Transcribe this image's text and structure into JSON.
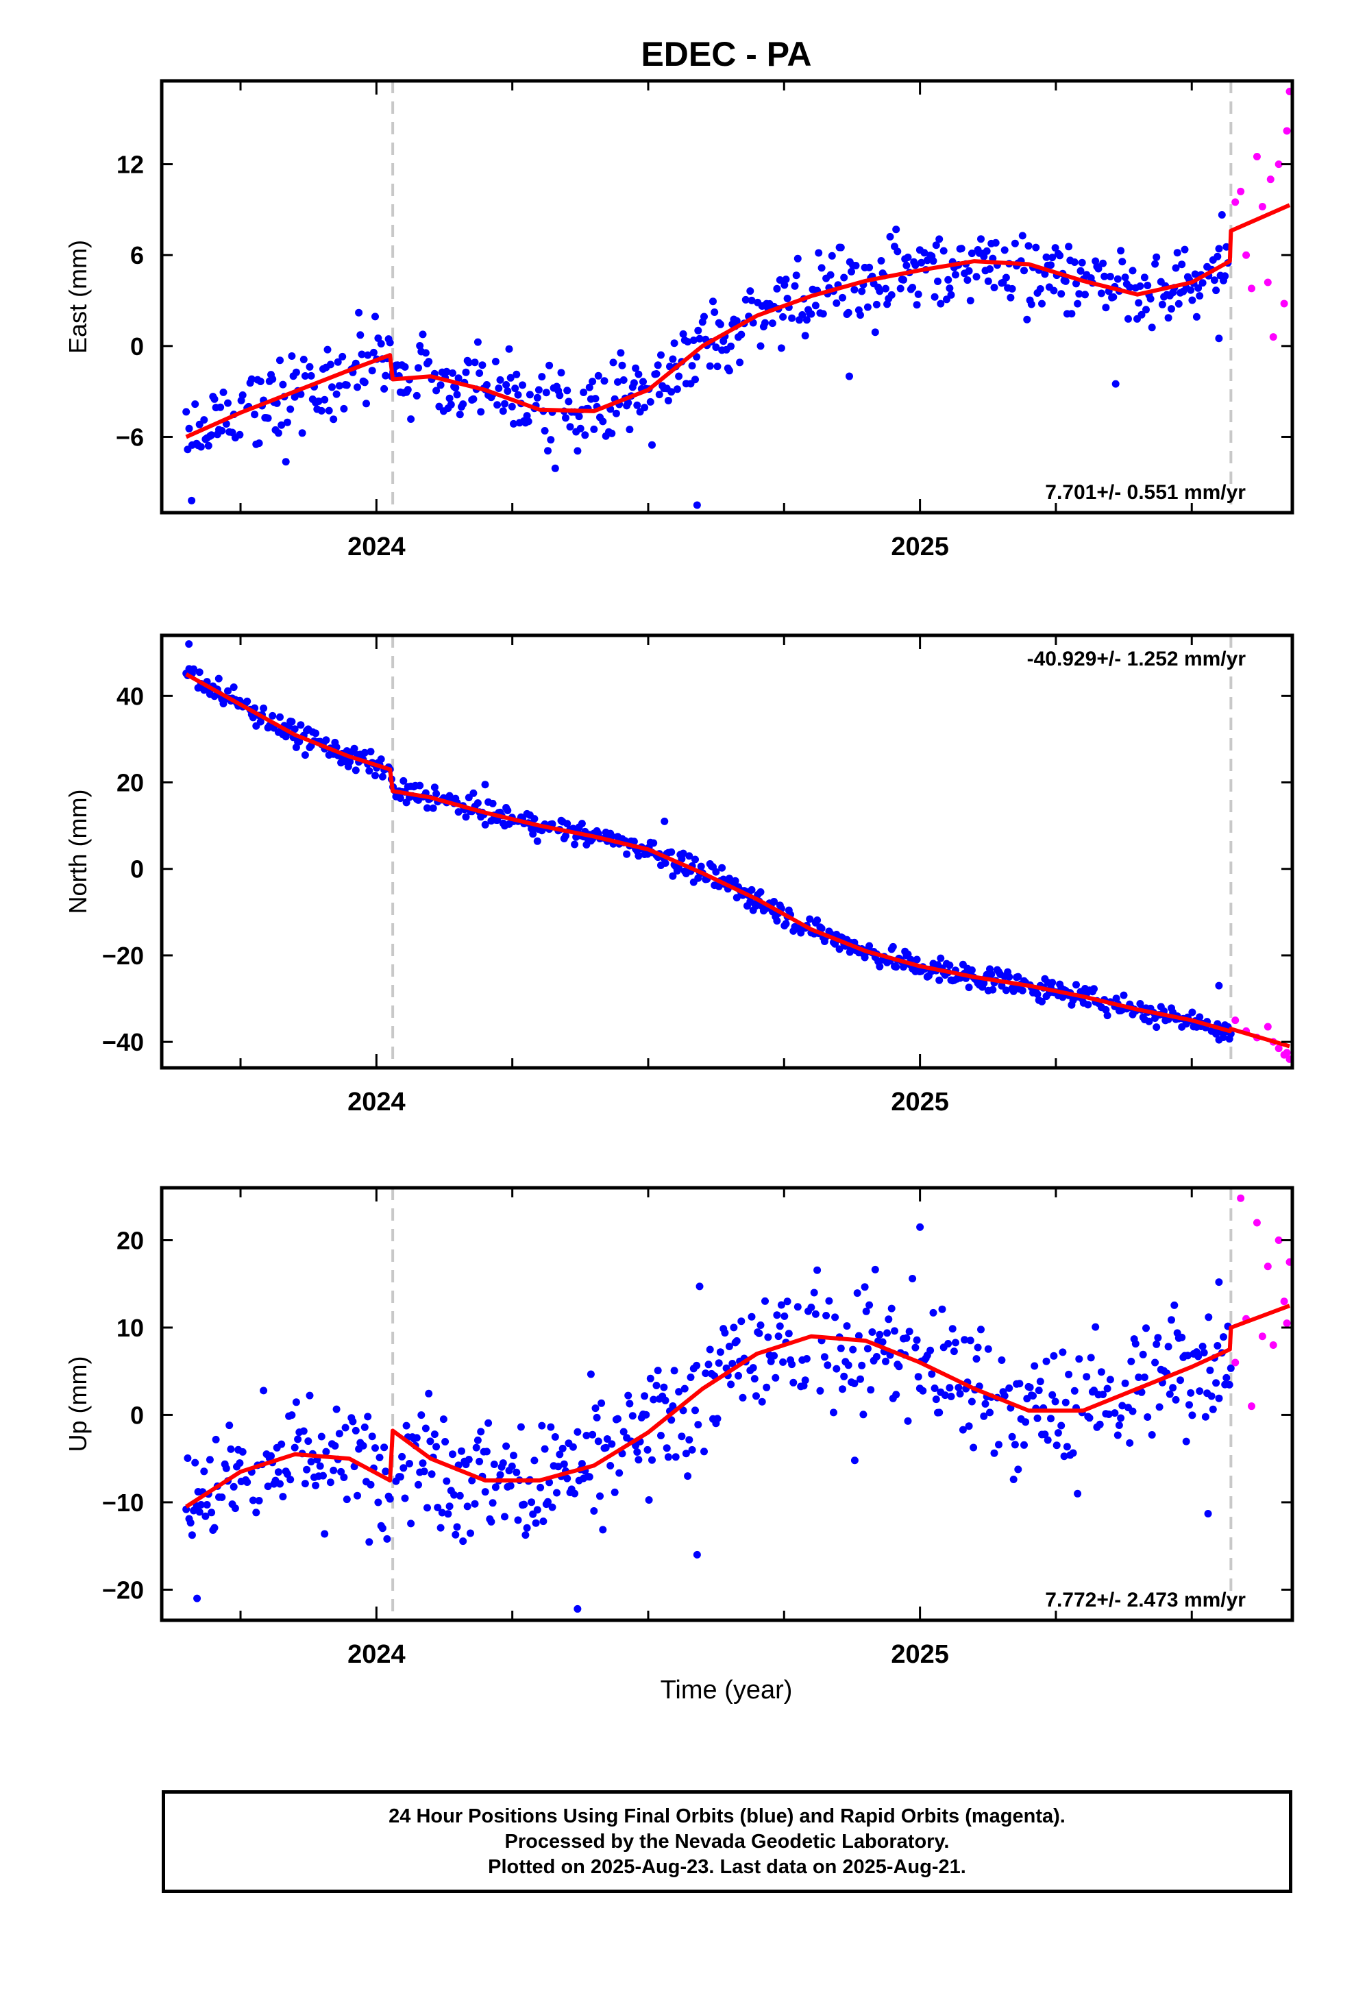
{
  "colors": {
    "final_orbits": "#0000ff",
    "rapid_orbits": "#ff00ff",
    "model": "#ff0000",
    "event_line": "#c8c8c8",
    "frame": "#000000"
  },
  "chart_data": {
    "title": "EDEC - PA",
    "type": "scatter",
    "shared_xlabel": "Time (year)",
    "x_tick_labels": [
      "2024",
      "2025"
    ],
    "xlim": [
      2023.605,
      2025.685
    ],
    "event_lines_x": [
      2024.03,
      2025.572
    ],
    "rapid_start": 2025.575,
    "panels": [
      {
        "ylabel": "East (mm)",
        "ylim": [
          -11,
          17.5
        ],
        "yticks": [
          -6,
          0,
          6,
          12
        ],
        "ytick_labels": [
          "−6",
          "0",
          "6",
          "12"
        ],
        "rate_label": "7.701+/- 0.551 mm/yr",
        "rate_pos": "bottom-right",
        "model_x": [
          2023.65,
          2023.75,
          2023.85,
          2023.95,
          2024.025,
          2024.03,
          2024.1,
          2024.2,
          2024.3,
          2024.4,
          2024.5,
          2024.6,
          2024.7,
          2024.8,
          2024.9,
          2025.0,
          2025.1,
          2025.2,
          2025.3,
          2025.4,
          2025.5,
          2025.57,
          2025.572,
          2025.68
        ],
        "model_y": [
          -6,
          -4.4,
          -3.0,
          -1.6,
          -0.6,
          -2.2,
          -2.0,
          -2.9,
          -4.2,
          -4.3,
          -2.9,
          0.0,
          2.0,
          3.3,
          4.3,
          5.0,
          5.6,
          5.4,
          4.3,
          3.4,
          4.2,
          5.6,
          7.6,
          9.3
        ],
        "anchor_x": [
          2023.65,
          2023.75,
          2023.85,
          2023.95,
          2024.025,
          2024.03,
          2024.1,
          2024.2,
          2024.3,
          2024.4,
          2024.5,
          2024.6,
          2024.7,
          2024.8,
          2024.9,
          2025.0,
          2025.1,
          2025.2,
          2025.3,
          2025.4,
          2025.5,
          2025.57
        ],
        "anchor_y": [
          -6,
          -4.4,
          -3.0,
          -1.6,
          -0.6,
          -2.2,
          -2.0,
          -2.9,
          -4.2,
          -4.3,
          -2.9,
          0.0,
          2.0,
          3.3,
          4.3,
          5.0,
          5.6,
          5.4,
          4.3,
          3.4,
          4.2,
          5.6
        ],
        "scatter_sd": 1.3,
        "outliers": [
          [
            2023.66,
            -10.2
          ],
          [
            2024.59,
            -10.5
          ],
          [
            2024.87,
            -2.0
          ],
          [
            2025.36,
            -2.5
          ],
          [
            2025.55,
            0.5
          ]
        ],
        "rapid_x": [
          2025.58,
          2025.59,
          2025.6,
          2025.61,
          2025.62,
          2025.63,
          2025.64,
          2025.645,
          2025.65,
          2025.66,
          2025.67,
          2025.675,
          2025.68
        ],
        "rapid_y": [
          9.5,
          10.2,
          6.0,
          3.8,
          12.5,
          9.2,
          4.2,
          11.0,
          0.6,
          12.0,
          2.8,
          14.2,
          16.8
        ]
      },
      {
        "ylabel": "North (mm)",
        "ylim": [
          -46,
          54
        ],
        "yticks": [
          -40,
          -20,
          0,
          20,
          40
        ],
        "ytick_labels": [
          "−40",
          "−20",
          "0",
          "20",
          "40"
        ],
        "rate_label": "-40.929+/- 1.252 mm/yr",
        "rate_pos": "top-right",
        "model_x": [
          2023.65,
          2023.75,
          2023.85,
          2023.95,
          2024.025,
          2024.03,
          2024.1,
          2024.2,
          2024.3,
          2024.4,
          2024.5,
          2024.6,
          2024.7,
          2024.8,
          2024.9,
          2025.0,
          2025.1,
          2025.2,
          2025.3,
          2025.4,
          2025.5,
          2025.57,
          2025.572,
          2025.68
        ],
        "model_y": [
          45,
          38,
          31,
          26,
          23,
          18,
          16.5,
          13,
          10,
          7.5,
          4.5,
          -1,
          -7,
          -14,
          -19,
          -22.5,
          -25,
          -27,
          -29.5,
          -32.5,
          -35,
          -37.5,
          -37,
          -41
        ],
        "anchor_x": [
          2023.65,
          2023.75,
          2023.85,
          2023.95,
          2024.025,
          2024.03,
          2024.1,
          2024.2,
          2024.3,
          2024.4,
          2024.5,
          2024.6,
          2024.7,
          2024.8,
          2024.9,
          2025.0,
          2025.1,
          2025.2,
          2025.3,
          2025.4,
          2025.5,
          2025.57
        ],
        "anchor_y": [
          45,
          38,
          31,
          26,
          23,
          18,
          16.5,
          13,
          10,
          7.5,
          4.5,
          -1,
          -7,
          -14,
          -19,
          -22.5,
          -25,
          -27,
          -29.5,
          -32.5,
          -35,
          -37.5
        ],
        "scatter_sd": 1.4,
        "outliers": [
          [
            2023.655,
            52
          ],
          [
            2023.71,
            44
          ],
          [
            2024.2,
            19.5
          ],
          [
            2024.53,
            11
          ],
          [
            2025.55,
            -27
          ]
        ],
        "rapid_x": [
          2025.58,
          2025.6,
          2025.62,
          2025.64,
          2025.65,
          2025.66,
          2025.67,
          2025.675,
          2025.68
        ],
        "rapid_y": [
          -35,
          -37.5,
          -39,
          -36.5,
          -40,
          -41.5,
          -43,
          -42.5,
          -44
        ]
      },
      {
        "ylabel": "Up (mm)",
        "ylim": [
          -23.5,
          26
        ],
        "yticks": [
          -20,
          -10,
          0,
          10,
          20
        ],
        "ytick_labels": [
          "−20",
          "−10",
          "0",
          "10",
          "20"
        ],
        "rate_label": "7.772+/- 2.473 mm/yr",
        "rate_pos": "bottom-right",
        "model_x": [
          2023.65,
          2023.75,
          2023.85,
          2023.95,
          2024.025,
          2024.03,
          2024.1,
          2024.2,
          2024.3,
          2024.4,
          2024.5,
          2024.6,
          2024.7,
          2024.8,
          2024.9,
          2025.0,
          2025.1,
          2025.2,
          2025.3,
          2025.4,
          2025.5,
          2025.57,
          2025.572,
          2025.68
        ],
        "model_y": [
          -10.5,
          -6.5,
          -4.5,
          -5.0,
          -7.5,
          -1.8,
          -5.0,
          -7.5,
          -7.5,
          -5.8,
          -2.0,
          3.0,
          7.0,
          9.0,
          8.5,
          6.0,
          3.0,
          0.5,
          0.5,
          3.0,
          5.5,
          7.5,
          10.0,
          12.5
        ],
        "anchor_x": [
          2023.65,
          2023.75,
          2023.85,
          2023.95,
          2024.025,
          2024.03,
          2024.1,
          2024.2,
          2024.3,
          2024.4,
          2024.5,
          2024.6,
          2024.7,
          2024.8,
          2024.9,
          2025.0,
          2025.1,
          2025.2,
          2025.3,
          2025.4,
          2025.5,
          2025.57
        ],
        "anchor_y": [
          -10.5,
          -6.5,
          -4.5,
          -5.0,
          -7.5,
          -1.8,
          -5.0,
          -7.5,
          -7.5,
          -5.8,
          -2.0,
          3.0,
          7.0,
          9.0,
          8.5,
          6.0,
          3.0,
          0.5,
          0.5,
          3.0,
          5.5,
          7.5
        ],
        "scatter_sd": 3.8,
        "outliers": [
          [
            2023.67,
            -21
          ],
          [
            2024.37,
            -22.2
          ],
          [
            2024.59,
            -16
          ],
          [
            2025.0,
            21.5
          ],
          [
            2024.88,
            -5.2
          ],
          [
            2025.53,
            -11.3
          ],
          [
            2025.55,
            15.2
          ]
        ],
        "rapid_x": [
          2025.58,
          2025.59,
          2025.6,
          2025.61,
          2025.62,
          2025.63,
          2025.64,
          2025.65,
          2025.66,
          2025.67,
          2025.675,
          2025.68
        ],
        "rapid_y": [
          6.0,
          24.8,
          11.0,
          1.0,
          22.0,
          9.0,
          17.0,
          8.0,
          20.0,
          13.0,
          10.5,
          17.5
        ]
      }
    ]
  },
  "footer": {
    "line1": "24 Hour Positions Using Final Orbits (blue) and Rapid Orbits (magenta).",
    "line2": "Processed by the Nevada Geodetic Laboratory.",
    "line3": "Plotted on 2025-Aug-23. Last data on 2025-Aug-21."
  }
}
